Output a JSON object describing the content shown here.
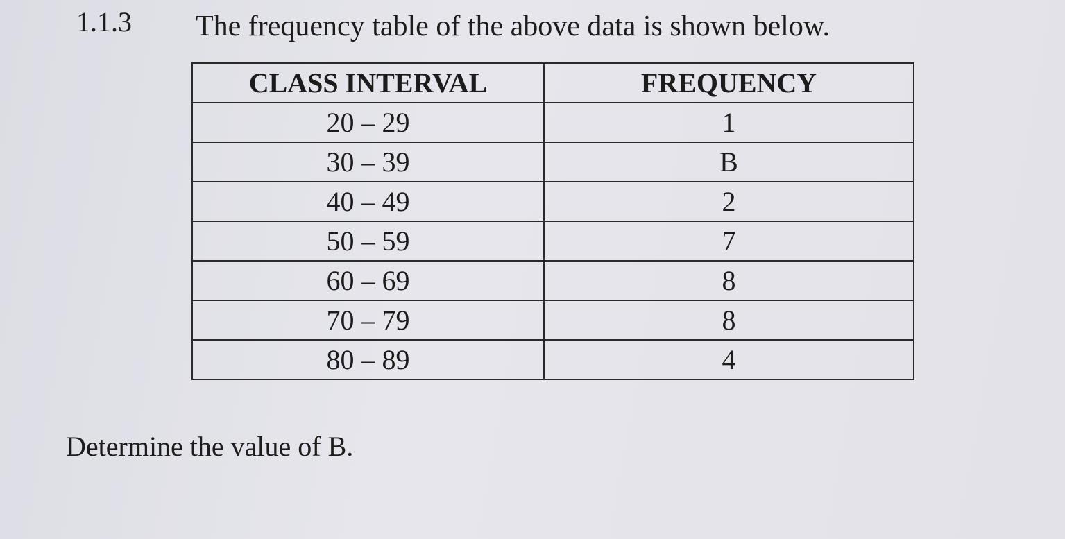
{
  "question": {
    "number": "1.1.3",
    "text": "The frequency table of the above data is shown below."
  },
  "table": {
    "header": [
      "CLASS INTERVAL",
      "FREQUENCY"
    ],
    "rows": [
      [
        "20 – 29",
        "1"
      ],
      [
        "30 – 39",
        "B"
      ],
      [
        "40 – 49",
        "2"
      ],
      [
        "50 – 59",
        "7"
      ],
      [
        "60 – 69",
        "8"
      ],
      [
        "70 – 79",
        "8"
      ],
      [
        "80 – 89",
        "4"
      ]
    ]
  },
  "prompt": "Determine the value of B."
}
